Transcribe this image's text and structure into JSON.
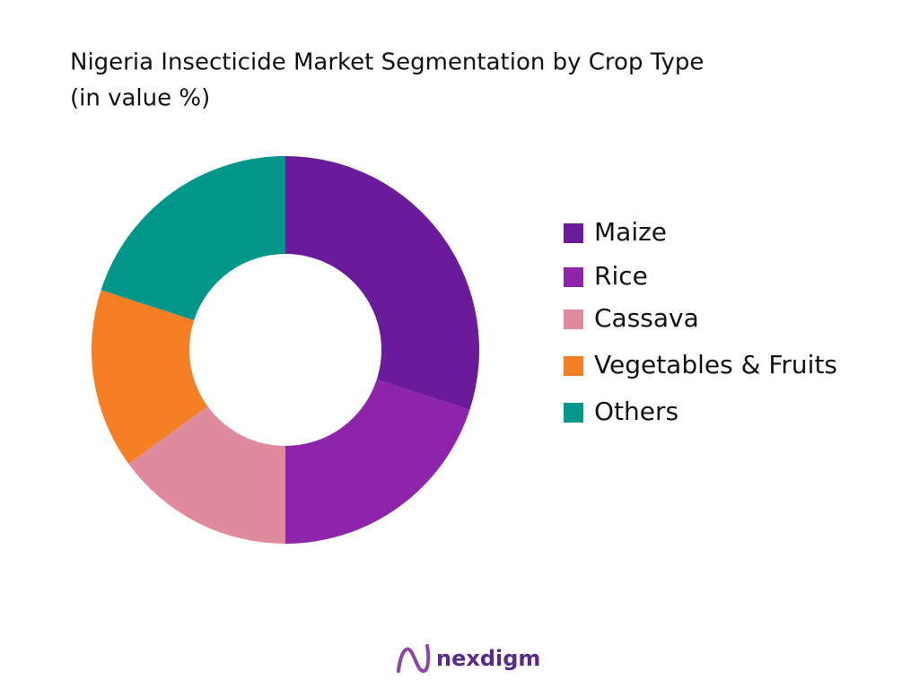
{
  "chart_data": {
    "type": "pie",
    "title": "Nigeria Insecticide Market Segmentation by Crop Type",
    "subtitle": "(in value %)",
    "categories": [
      "Maize",
      "Rice",
      "Cassava",
      "Vegetables & Fruits",
      "Others"
    ],
    "values": [
      30,
      20,
      15,
      15,
      20
    ],
    "colors": [
      "#6a1b9a",
      "#8e24aa",
      "#e08a9e",
      "#f47f24",
      "#00968a"
    ],
    "donut": true
  },
  "brand": "nexdigm"
}
